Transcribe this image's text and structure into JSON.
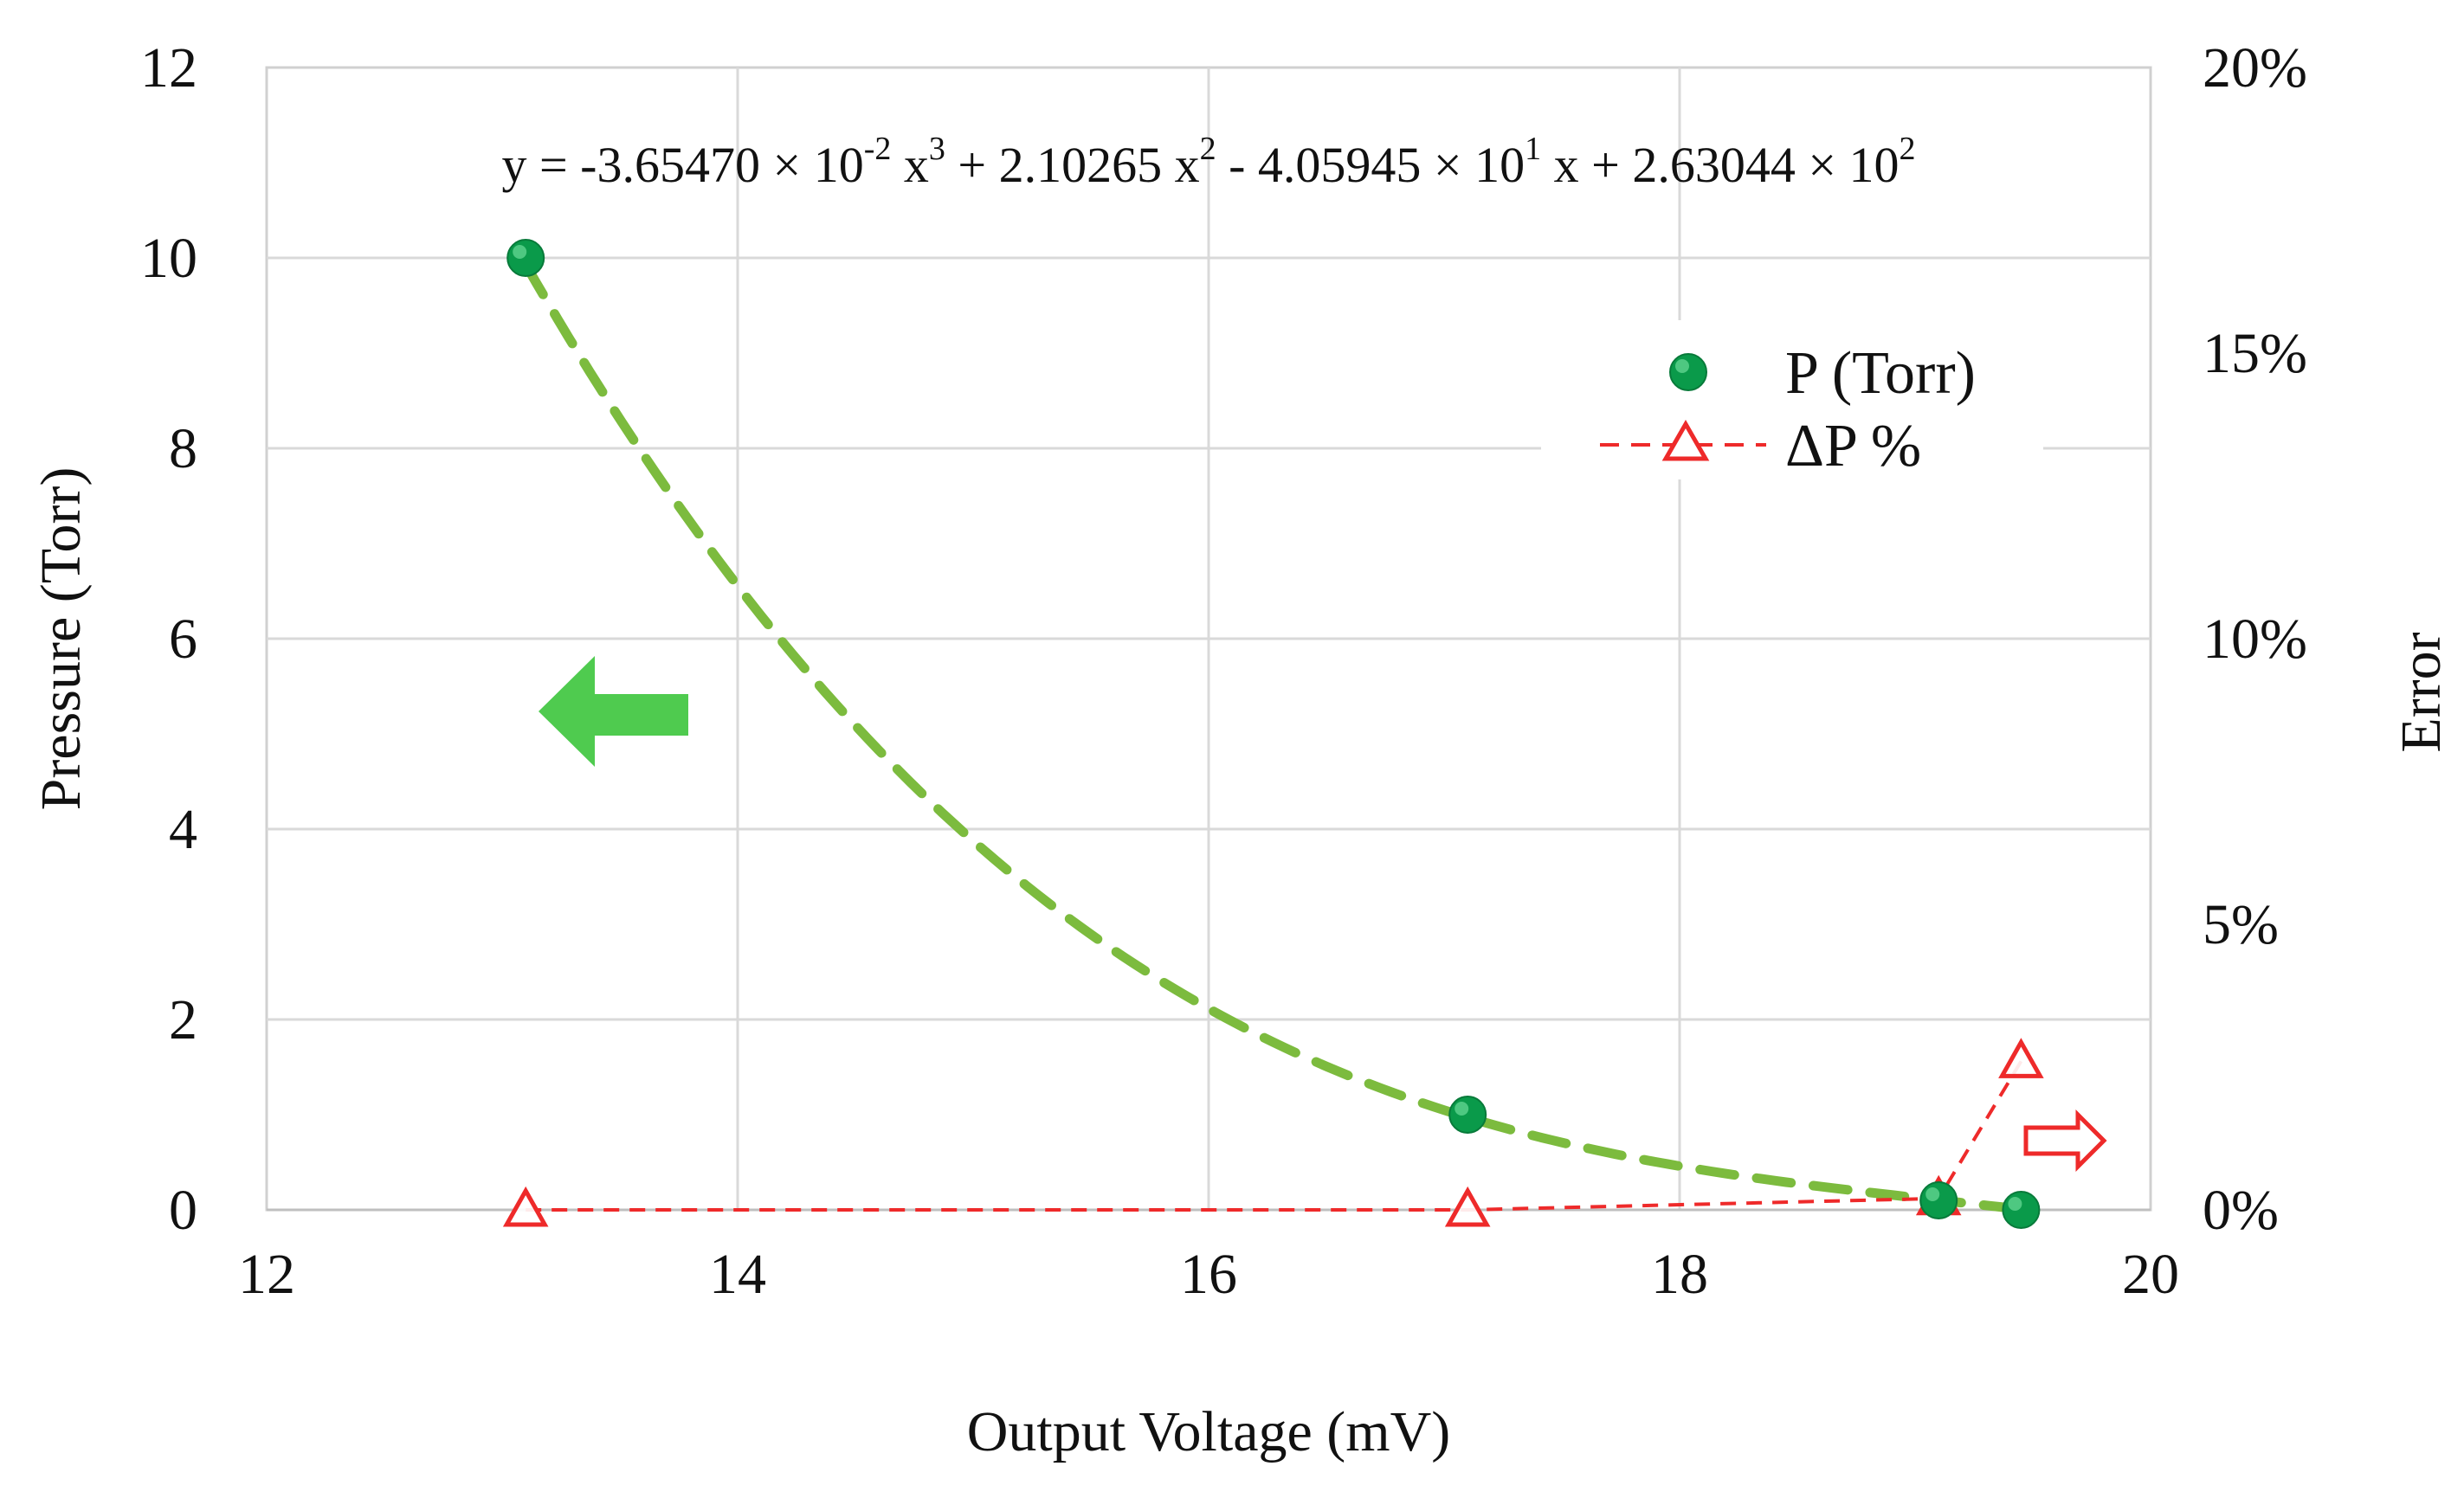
{
  "chart_data": {
    "type": "scatter",
    "xlabel": "Output Voltage (mV)",
    "ylabel": "Pressure (Torr)",
    "y2label": "Error",
    "xlim": [
      12,
      20
    ],
    "ylim": [
      0,
      12
    ],
    "y2lim": [
      0,
      0.2
    ],
    "x_ticks": [
      12,
      14,
      16,
      18,
      20
    ],
    "x_tick_labels": [
      "12",
      "14",
      "16",
      "18",
      "20"
    ],
    "y_ticks": [
      0,
      2,
      4,
      6,
      8,
      10,
      12
    ],
    "y_tick_labels": [
      "0",
      "2",
      "4",
      "6",
      "8",
      "10",
      "12"
    ],
    "y2_ticks": [
      0,
      0.05,
      0.1,
      0.15,
      0.2
    ],
    "y2_tick_labels": [
      "0%",
      "5%",
      "10%",
      "15%",
      "20%"
    ],
    "grid": true,
    "legend_position": "top-right",
    "series": [
      {
        "name": "P (Torr)",
        "axis": "left",
        "marker": "circle",
        "color": "#0a9a4a",
        "x": [
          13.1,
          17.1,
          19.1,
          19.45
        ],
        "y": [
          10,
          1,
          0.1,
          0
        ]
      },
      {
        "name": "ΔP %",
        "axis": "right",
        "marker": "open-triangle",
        "line": "dashed",
        "color": "#ee2a2a",
        "x": [
          13.1,
          17.1,
          19.1,
          19.45
        ],
        "y": [
          0,
          0,
          0.002,
          0.026
        ]
      }
    ],
    "trendline": {
      "type": "polynomial-3",
      "color": "#7cbb3e",
      "coefficients": [
        -0.036547,
        2.10265,
        -40.5945,
        263.044
      ],
      "x_range": [
        13.1,
        19.45
      ],
      "equation": {
        "prefix": "y = -3.65470 × 10",
        "e1": "-2",
        "t1": " x",
        "p1": "3",
        "t2": " + 2.10265  x",
        "p2": "2",
        "t3": " - 4.05945  × 10",
        "e3": "1",
        "t4": " x + 2.63044 × 10",
        "e4": "2"
      }
    },
    "annotations": [
      {
        "type": "arrow",
        "direction": "left",
        "style": "filled",
        "color": "#4fcb4f",
        "meaning": "left axis"
      },
      {
        "type": "arrow",
        "direction": "right",
        "style": "outline",
        "color": "#ee2a2a",
        "meaning": "right axis"
      }
    ]
  }
}
